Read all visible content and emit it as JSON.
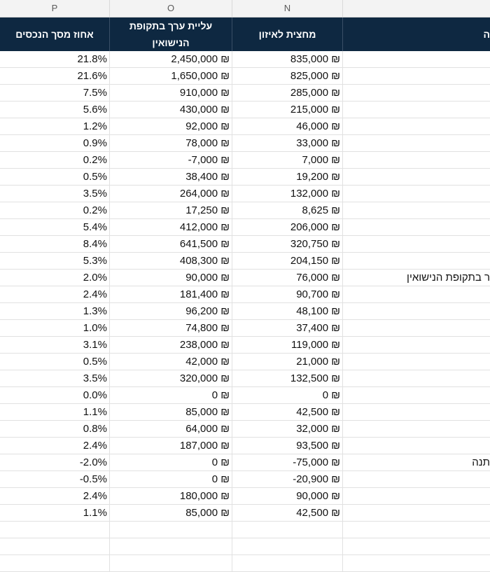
{
  "columns": {
    "p": "P",
    "o": "O",
    "n": "N"
  },
  "headers": {
    "p": "אחוז מסך הנכסים",
    "o": "עליית ערך בתקופת הנישואין",
    "n": "מחצית לאיזון",
    "m": "ה"
  },
  "rows": [
    {
      "p": "21.8%",
      "o": "2,450,000 ₪",
      "n": "835,000 ₪",
      "m": ""
    },
    {
      "p": "21.6%",
      "o": "1,650,000 ₪",
      "n": "825,000 ₪",
      "m": ""
    },
    {
      "p": "7.5%",
      "o": "910,000 ₪",
      "n": "285,000 ₪",
      "m": ""
    },
    {
      "p": "5.6%",
      "o": "430,000 ₪",
      "n": "215,000 ₪",
      "m": ""
    },
    {
      "p": "1.2%",
      "o": "92,000 ₪",
      "n": "46,000 ₪",
      "m": ""
    },
    {
      "p": "0.9%",
      "o": "78,000 ₪",
      "n": "33,000 ₪",
      "m": ""
    },
    {
      "p": "0.2%",
      "o": "-7,000 ₪",
      "n": "7,000 ₪",
      "m": ""
    },
    {
      "p": "0.5%",
      "o": "38,400 ₪",
      "n": "19,200 ₪",
      "m": ""
    },
    {
      "p": "3.5%",
      "o": "264,000 ₪",
      "n": "132,000 ₪",
      "m": ""
    },
    {
      "p": "0.2%",
      "o": "17,250 ₪",
      "n": "8,625 ₪",
      "m": ""
    },
    {
      "p": "5.4%",
      "o": "412,000 ₪",
      "n": "206,000 ₪",
      "m": ""
    },
    {
      "p": "8.4%",
      "o": "641,500 ₪",
      "n": "320,750 ₪",
      "m": ""
    },
    {
      "p": "5.3%",
      "o": "408,300 ₪",
      "n": "204,150 ₪",
      "m": ""
    },
    {
      "p": "2.0%",
      "o": "90,000 ₪",
      "n": "76,000 ₪",
      "m": "ר בתקופת הנישואין"
    },
    {
      "p": "2.4%",
      "o": "181,400 ₪",
      "n": "90,700 ₪",
      "m": ""
    },
    {
      "p": "1.3%",
      "o": "96,200 ₪",
      "n": "48,100 ₪",
      "m": ""
    },
    {
      "p": "1.0%",
      "o": "74,800 ₪",
      "n": "37,400 ₪",
      "m": ""
    },
    {
      "p": "3.1%",
      "o": "238,000 ₪",
      "n": "119,000 ₪",
      "m": ""
    },
    {
      "p": "0.5%",
      "o": "42,000 ₪",
      "n": "21,000 ₪",
      "m": ""
    },
    {
      "p": "3.5%",
      "o": "320,000 ₪",
      "n": "132,500 ₪",
      "m": ""
    },
    {
      "p": "0.0%",
      "o": "0 ₪",
      "n": "0 ₪",
      "m": ""
    },
    {
      "p": "1.1%",
      "o": "85,000 ₪",
      "n": "42,500 ₪",
      "m": ""
    },
    {
      "p": "0.8%",
      "o": "64,000 ₪",
      "n": "32,000 ₪",
      "m": ""
    },
    {
      "p": "2.4%",
      "o": "187,000 ₪",
      "n": "93,500 ₪",
      "m": ""
    },
    {
      "p": "-2.0%",
      "o": "0 ₪",
      "n": "-75,000 ₪",
      "m": "תנה"
    },
    {
      "p": "-0.5%",
      "o": "0 ₪",
      "n": "-20,900 ₪",
      "m": ""
    },
    {
      "p": "2.4%",
      "o": "180,000 ₪",
      "n": "90,000 ₪",
      "m": ""
    },
    {
      "p": "1.1%",
      "o": "85,000 ₪",
      "n": "42,500 ₪",
      "m": ""
    },
    {
      "p": "",
      "o": "",
      "n": "",
      "m": ""
    },
    {
      "p": "",
      "o": "",
      "n": "",
      "m": ""
    },
    {
      "p": "",
      "o": "",
      "n": "",
      "m": ""
    }
  ]
}
